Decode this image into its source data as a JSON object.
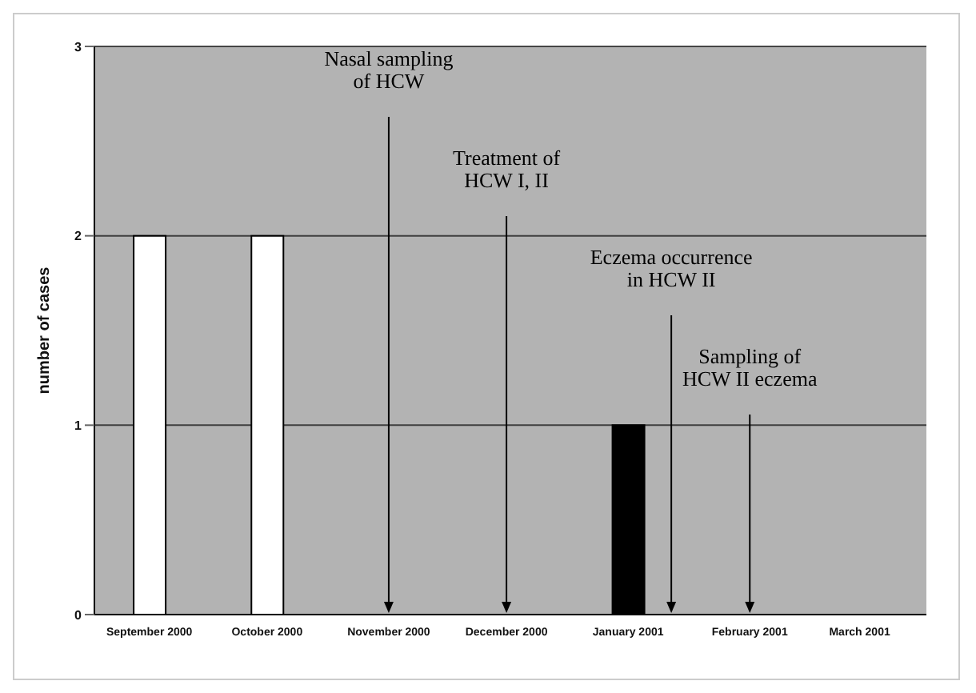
{
  "chart_data": {
    "type": "bar",
    "ylabel": "number of cases",
    "x": [
      "2000-09-15",
      "2000-10-15",
      "2001-01-15"
    ],
    "values": [
      2,
      2,
      1
    ],
    "colors": [
      "#ffffff",
      "#ffffff",
      "#000000"
    ],
    "xlim": [
      "2000-09-01",
      "2001-04-01"
    ],
    "xticks": [
      {
        "value": "2000-09-15",
        "label": "September 2000"
      },
      {
        "value": "2000-10-15",
        "label": "October 2000"
      },
      {
        "value": "2000-11-15",
        "label": "November 2000"
      },
      {
        "value": "2000-12-15",
        "label": "December 2000"
      },
      {
        "value": "2001-01-15",
        "label": "January 2001"
      },
      {
        "value": "2001-02-15",
        "label": "February 2001"
      },
      {
        "value": "2001-03-15",
        "label": "March 2001"
      }
    ],
    "ylim": [
      0,
      3
    ],
    "yticks": [
      0,
      1,
      2,
      3
    ],
    "grid": "y",
    "ref_lines": [
      {
        "axis": "x",
        "value": "2000-11-15",
        "label": "Nasal sampling\nof HCW"
      },
      {
        "axis": "x",
        "value": "2000-12-15",
        "label": "Treatment of\nHCW I, II"
      },
      {
        "axis": "x",
        "value": "2001-01-26",
        "label": "Eczema occurrence\nin HCW II"
      },
      {
        "axis": "x",
        "value": "2001-02-15",
        "label": "Sampling of\nHCW II eczema"
      }
    ]
  }
}
